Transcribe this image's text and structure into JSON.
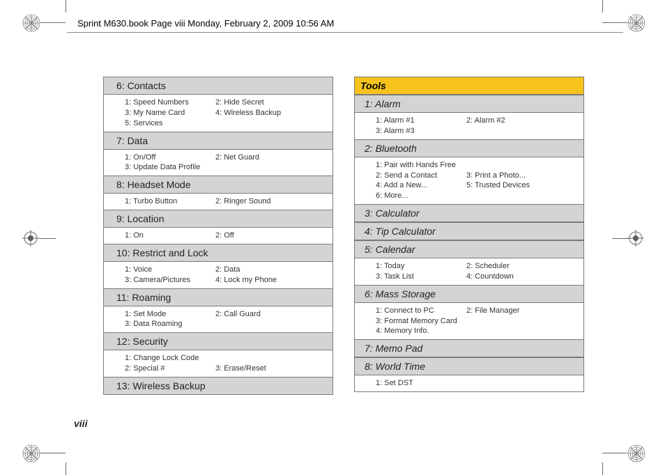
{
  "header": {
    "text": "Sprint M630.book  Page viii  Monday, February 2, 2009  10:56 AM"
  },
  "page_number": "viii",
  "left_col": {
    "sections": [
      {
        "title": "6: Contacts",
        "items": [
          "1: Speed Numbers",
          "2: Hide Secret",
          "3: My Name Card",
          "4: Wireless Backup",
          "5: Services"
        ]
      },
      {
        "title": "7: Data",
        "items": [
          "1: On/Off",
          "2: Net Guard",
          "3: Update Data Profile"
        ]
      },
      {
        "title": "8: Headset Mode",
        "items": [
          "1: Turbo Button",
          "2: Ringer Sound"
        ]
      },
      {
        "title": "9: Location",
        "items": [
          "1: On",
          "2: Off"
        ]
      },
      {
        "title": "10: Restrict and Lock",
        "items": [
          "1: Voice",
          "2: Data",
          "3: Camera/Pictures",
          "4: Lock my Phone"
        ]
      },
      {
        "title": "11: Roaming",
        "items": [
          "1: Set Mode",
          "2: Call Guard",
          "3: Data Roaming"
        ]
      },
      {
        "title": "12: Security",
        "items": [
          "1: Change Lock Code",
          "",
          "2: Special #",
          "3: Erase/Reset"
        ]
      },
      {
        "title": "13: Wireless Backup",
        "items": []
      }
    ]
  },
  "right_col": {
    "header": "Tools",
    "sections": [
      {
        "title": "1: Alarm",
        "items": [
          "1: Alarm #1",
          "2: Alarm #2",
          "3: Alarm #3"
        ]
      },
      {
        "title": "2: Bluetooth",
        "items": [
          "1: Pair with Hands Free",
          "",
          "2: Send a Contact",
          "3: Print a Photo...",
          "4: Add a New...",
          "5: Trusted Devices",
          "6: More..."
        ]
      },
      {
        "title": "3: Calculator",
        "items": []
      },
      {
        "title": "4: Tip Calculator",
        "items": []
      },
      {
        "title": "5: Calendar",
        "items": [
          "1: Today",
          "2: Scheduler",
          "3: Task List",
          "4: Countdown"
        ]
      },
      {
        "title": "6: Mass Storage",
        "items": [
          "1: Connect to PC",
          "2: File Manager",
          "3: Format Memory Card",
          "",
          "4: Memory Info."
        ]
      },
      {
        "title": "7: Memo Pad",
        "items": []
      },
      {
        "title": "8: World Time",
        "items": [
          "1: Set DST"
        ]
      }
    ]
  },
  "colors": {
    "section_bg": "#d4d4d4",
    "section_border": "#7a7a7a",
    "tools_bg": "#f6c31c",
    "text": "#222222"
  }
}
